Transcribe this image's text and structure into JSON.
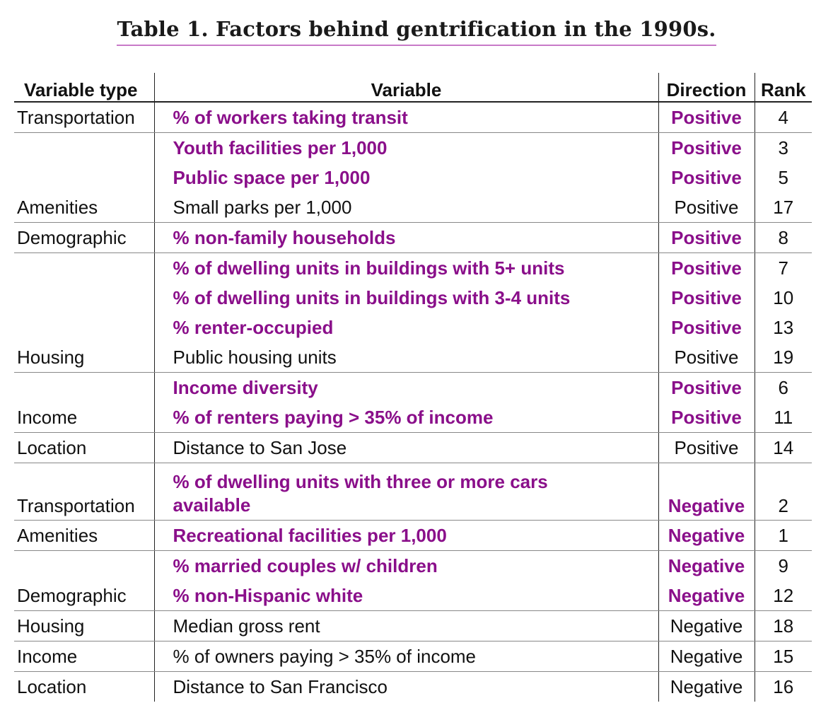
{
  "caption": "Table 1.  Factors behind gentrification in the 1990s.",
  "colors": {
    "highlight": "#8a0f8a",
    "caption_underline": "#c879c8",
    "text": "#111111"
  },
  "table": {
    "headers": {
      "variable_type": "Variable type",
      "variable": "Variable",
      "direction": "Direction",
      "rank": "Rank"
    },
    "rows": [
      {
        "type": "Transportation",
        "variable": "% of workers taking transit",
        "direction": "Positive",
        "rank": "4",
        "highlight": true
      },
      {
        "type": "",
        "variable": "Youth facilities per 1,000",
        "direction": "Positive",
        "rank": "3",
        "highlight": true
      },
      {
        "type": "",
        "variable": "Public space per 1,000",
        "direction": "Positive",
        "rank": "5",
        "highlight": true
      },
      {
        "type": "Amenities",
        "variable": "Small parks per 1,000",
        "direction": "Positive",
        "rank": "17",
        "highlight": false
      },
      {
        "type": "Demographic",
        "variable": "% non-family households",
        "direction": "Positive",
        "rank": "8",
        "highlight": true
      },
      {
        "type": "",
        "variable": "% of dwelling units in buildings with 5+ units",
        "direction": "Positive",
        "rank": "7",
        "highlight": true
      },
      {
        "type": "",
        "variable": "% of dwelling units in buildings with 3-4 units",
        "direction": "Positive",
        "rank": "10",
        "highlight": true
      },
      {
        "type": "",
        "variable": "% renter-occupied",
        "direction": "Positive",
        "rank": "13",
        "highlight": true
      },
      {
        "type": "Housing",
        "variable": "Public housing units",
        "direction": "Positive",
        "rank": "19",
        "highlight": false
      },
      {
        "type": "",
        "variable": "Income diversity",
        "direction": "Positive",
        "rank": "6",
        "highlight": true
      },
      {
        "type": "Income",
        "variable": "% of renters paying > 35% of income",
        "direction": "Positive",
        "rank": "11",
        "highlight": true
      },
      {
        "type": "Location",
        "variable": "Distance to San Jose",
        "direction": "Positive",
        "rank": "14",
        "highlight": false
      },
      {
        "type": "Transportation",
        "variable_line1": "% of dwelling units with three or more cars",
        "variable_line2": "available",
        "direction": "Negative",
        "rank": "2",
        "highlight": true
      },
      {
        "type": "Amenities",
        "variable": "Recreational facilities per 1,000",
        "direction": "Negative",
        "rank": "1",
        "highlight": true
      },
      {
        "type": "",
        "variable": "% married couples w/ children",
        "direction": "Negative",
        "rank": "9",
        "highlight": true
      },
      {
        "type": "Demographic",
        "variable": "% non-Hispanic white",
        "direction": "Negative",
        "rank": "12",
        "highlight": true
      },
      {
        "type": "Housing",
        "variable": "Median gross rent",
        "direction": "Negative",
        "rank": "18",
        "highlight": false
      },
      {
        "type": "Income",
        "variable": "% of owners paying > 35% of income",
        "direction": "Negative",
        "rank": "15",
        "highlight": false
      },
      {
        "type": "Location",
        "variable": "Distance to San Francisco",
        "direction": "Negative",
        "rank": "16",
        "highlight": false
      }
    ]
  }
}
